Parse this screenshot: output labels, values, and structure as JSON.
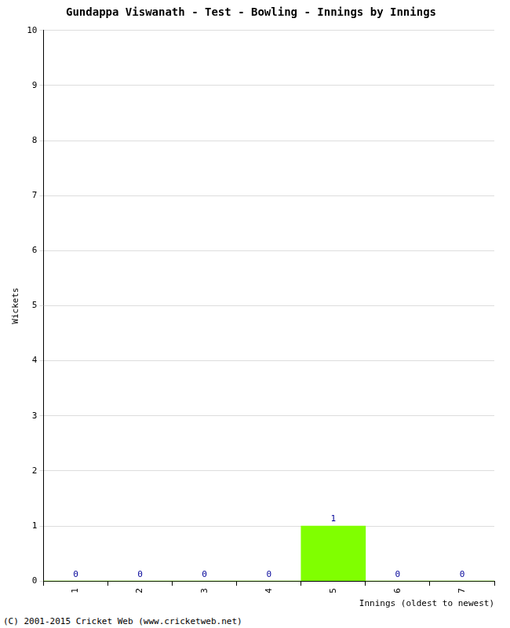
{
  "chart_data": {
    "type": "bar",
    "title": "Gundappa Viswanath - Test - Bowling - Innings by Innings",
    "x_label": "Innings (oldest to newest)",
    "y_label": "Wickets",
    "categories": [
      "1",
      "2",
      "3",
      "4",
      "5",
      "6",
      "7"
    ],
    "values": [
      0,
      0,
      0,
      0,
      1,
      0,
      0
    ],
    "color": "#80ff00",
    "ylim": [
      0,
      10
    ],
    "yticks": [
      0,
      1,
      2,
      3,
      4,
      5,
      6,
      7,
      8,
      9,
      10
    ],
    "grid": true,
    "data_labels": true,
    "annotations": [
      "(C) 2001-2015 Cricket Web (www.cricketweb.net)"
    ]
  }
}
